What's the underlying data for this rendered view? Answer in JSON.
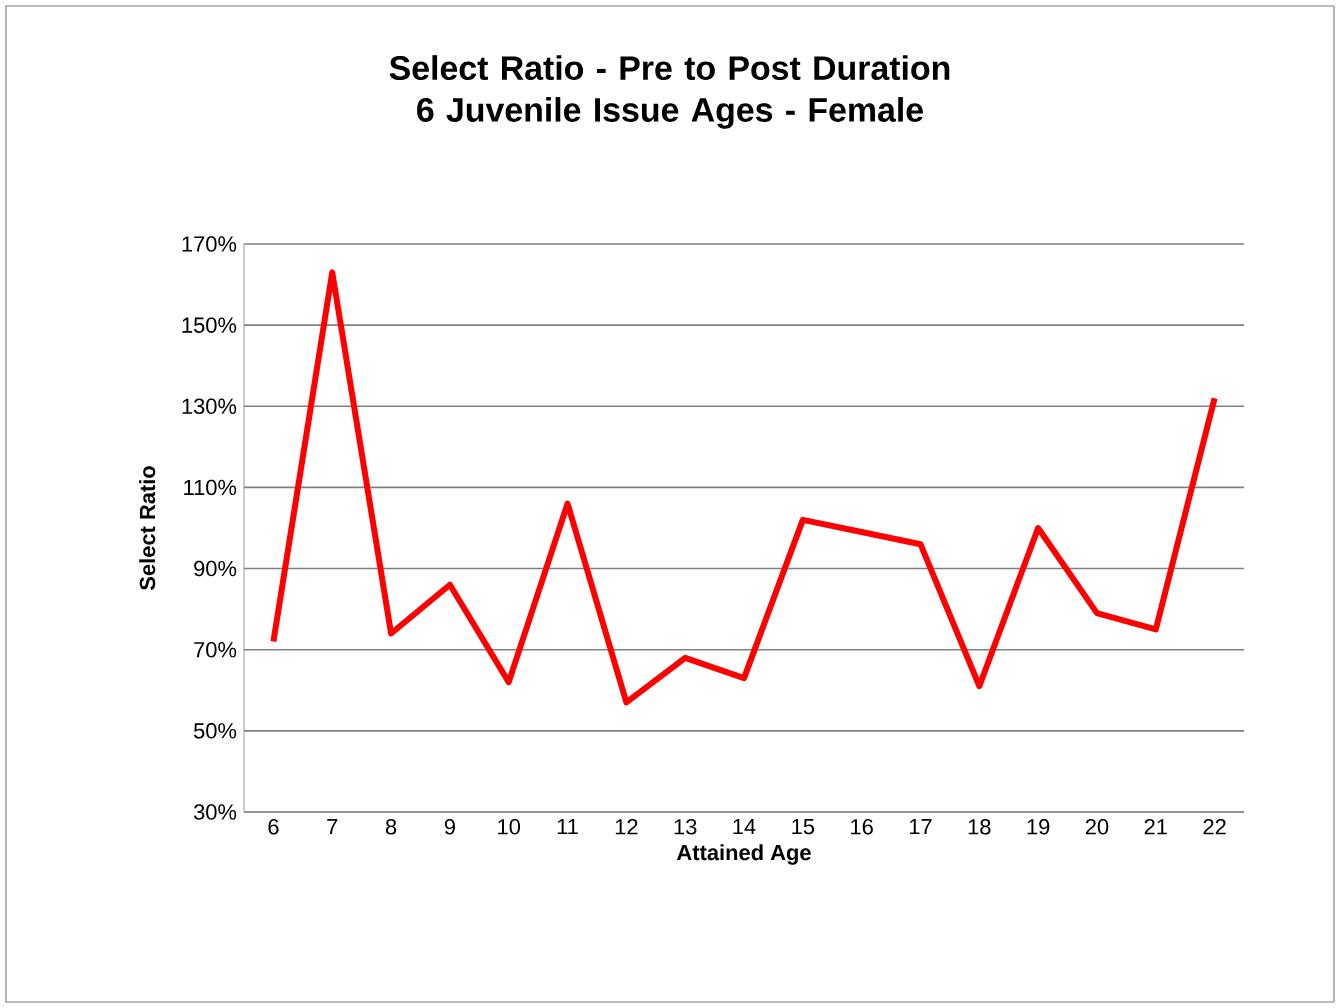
{
  "chart_data": {
    "type": "line",
    "title": "Select Ratio - Pre to Post Duration 6 Juvenile Issue Ages - Female",
    "xlabel": "Attained Age",
    "ylabel": "Select Ratio",
    "categories": [
      "6",
      "7",
      "8",
      "9",
      "10",
      "11",
      "12",
      "13",
      "14",
      "15",
      "16",
      "17",
      "18",
      "19",
      "20",
      "21",
      "22"
    ],
    "series": [
      {
        "color": "#ff0000",
        "values": [
          72,
          163,
          74,
          86,
          62,
          106,
          57,
          68,
          63,
          102,
          99,
          96,
          61,
          100,
          79,
          75,
          132
        ]
      }
    ],
    "ylim": [
      30,
      170
    ],
    "yticks": [
      {
        "value": 30,
        "label": "30%"
      },
      {
        "value": 50,
        "label": "50%"
      },
      {
        "value": 70,
        "label": "70%"
      },
      {
        "value": 90,
        "label": "90%"
      },
      {
        "value": 110,
        "label": "110%"
      },
      {
        "value": 130,
        "label": "130%"
      },
      {
        "value": 150,
        "label": "150%"
      },
      {
        "value": 170,
        "label": "170%"
      }
    ],
    "grid": "y",
    "marker": "none",
    "line_style": "solid"
  }
}
